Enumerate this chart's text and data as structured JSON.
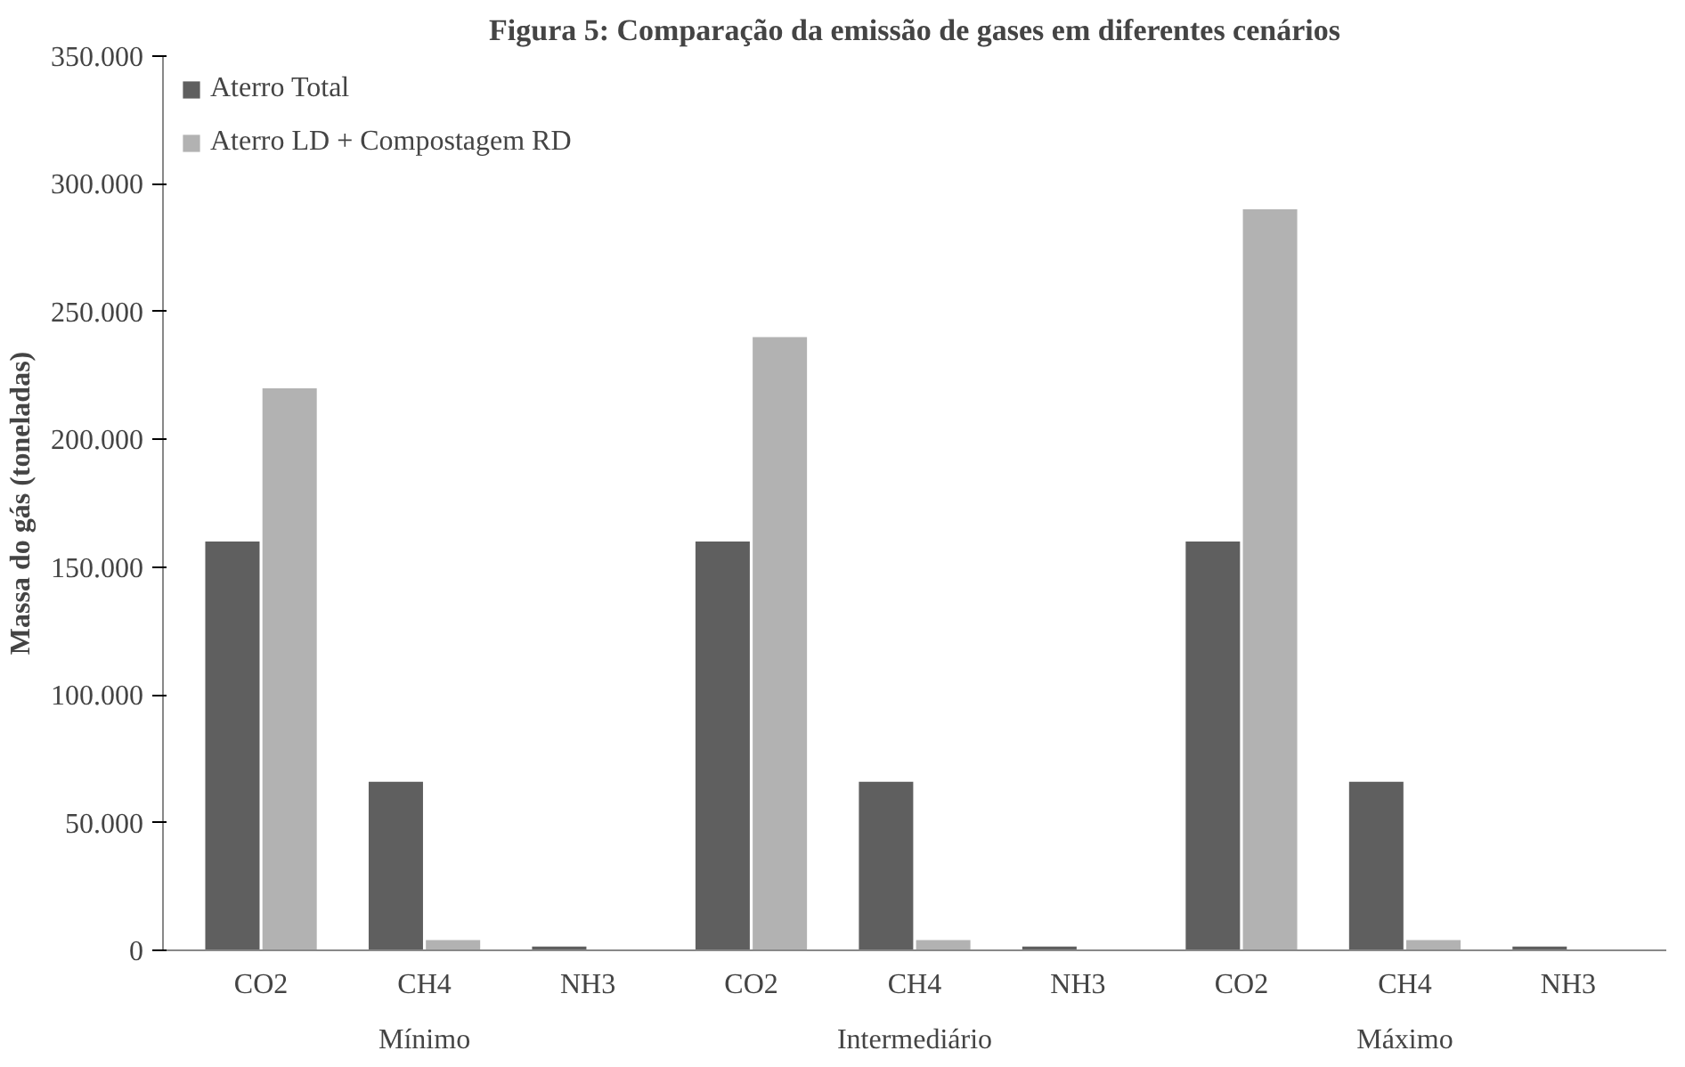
{
  "chart_data": {
    "type": "bar",
    "title": "Figura 5: Comparação da emissão de gases em diferentes cenários",
    "ylabel": "Massa do gás (toneladas)",
    "categories": [
      "CO2",
      "CH4",
      "NH3",
      "CO2",
      "CH4",
      "NH3",
      "CO2",
      "CH4",
      "NH3"
    ],
    "annotations": [
      "Mínimo",
      "Intermediário",
      "Máximo"
    ],
    "series": [
      {
        "name": "Aterro Total",
        "color": "#5f5f5f",
        "values": [
          160000,
          66000,
          1500,
          160000,
          66000,
          1500,
          160000,
          66000,
          1500
        ]
      },
      {
        "name": "Aterro LD + Compostagem RD",
        "color": "#b2b2b2",
        "values": [
          220000,
          4000,
          300,
          240000,
          4000,
          300,
          290000,
          4000,
          300
        ]
      }
    ],
    "ylim": [
      0,
      350000
    ],
    "yticks": [
      {
        "value": 0,
        "label": "0"
      },
      {
        "value": 50000,
        "label": "50.000"
      },
      {
        "value": 100000,
        "label": "100.000"
      },
      {
        "value": 150000,
        "label": "150.000"
      },
      {
        "value": 200000,
        "label": "200.000"
      },
      {
        "value": 250000,
        "label": "250.000"
      },
      {
        "value": 300000,
        "label": "300.000"
      },
      {
        "value": 350000,
        "label": "350.000"
      }
    ],
    "grid": false,
    "legend": "top left"
  }
}
